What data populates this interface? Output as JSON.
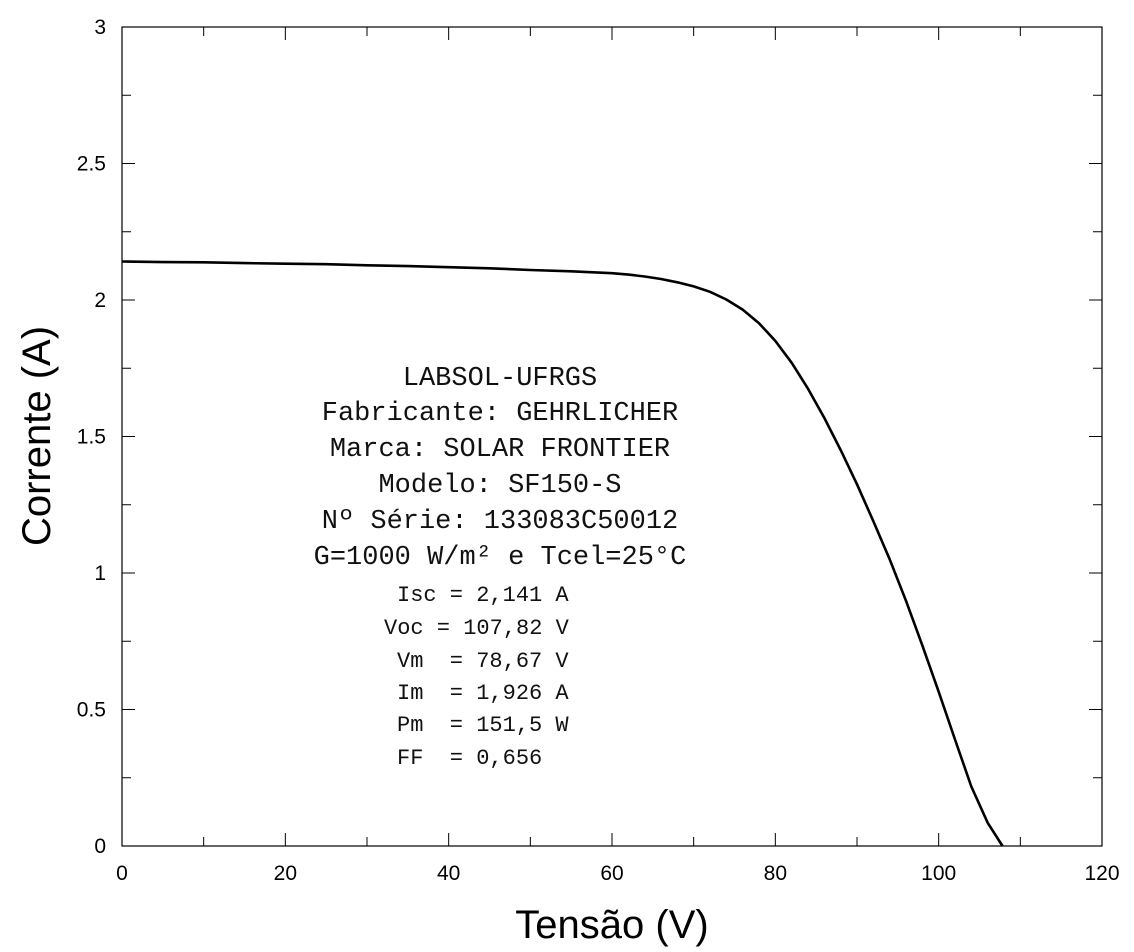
{
  "chart_data": {
    "type": "line",
    "title": "",
    "xlabel": "Tensão (V)",
    "ylabel": "Corrente (A)",
    "xlim": [
      0,
      120
    ],
    "ylim": [
      0,
      3
    ],
    "x_ticks": [
      0,
      20,
      40,
      60,
      80,
      100,
      120
    ],
    "x_tick_labels": [
      "0",
      "20",
      "40",
      "60",
      "80",
      "100",
      "120"
    ],
    "y_ticks": [
      0,
      0.5,
      1,
      1.5,
      2,
      2.5,
      3
    ],
    "y_tick_labels": [
      "0",
      "0.5",
      "1",
      "1.5",
      "2",
      "2.5",
      "3"
    ],
    "grid": false,
    "series": [
      {
        "color": "#000000",
        "x": [
          0,
          5,
          10,
          15,
          20,
          25,
          30,
          35,
          40,
          45,
          50,
          55,
          60,
          62,
          64,
          66,
          68,
          70,
          72,
          74,
          76,
          78,
          80,
          82,
          84,
          86,
          88,
          90,
          92,
          94,
          96,
          98,
          100,
          102,
          104,
          106,
          107.82
        ],
        "y": [
          2.141,
          2.139,
          2.138,
          2.135,
          2.133,
          2.131,
          2.127,
          2.124,
          2.12,
          2.116,
          2.11,
          2.105,
          2.098,
          2.093,
          2.086,
          2.077,
          2.065,
          2.05,
          2.03,
          2.002,
          1.965,
          1.915,
          1.85,
          1.77,
          1.675,
          1.568,
          1.45,
          1.325,
          1.19,
          1.05,
          0.898,
          0.735,
          0.565,
          0.39,
          0.218,
          0.085,
          0
        ]
      }
    ],
    "annotations": {
      "header": [
        "LABSOL-UFRGS",
        "Fabricante: GEHRLICHER",
        "Marca: SOLAR FRONTIER",
        "Modelo: SF150-S",
        "Nº Série: 133083C50012",
        "G=1000 W/m² e Tcel=25°C"
      ],
      "params": [
        "Isc = 2,141 A",
        "Voc = 107,82 V",
        "Vm  = 78,67 V",
        "Im  = 1,926 A",
        "Pm  = 151,5 W",
        "FF  = 0,656"
      ]
    }
  }
}
